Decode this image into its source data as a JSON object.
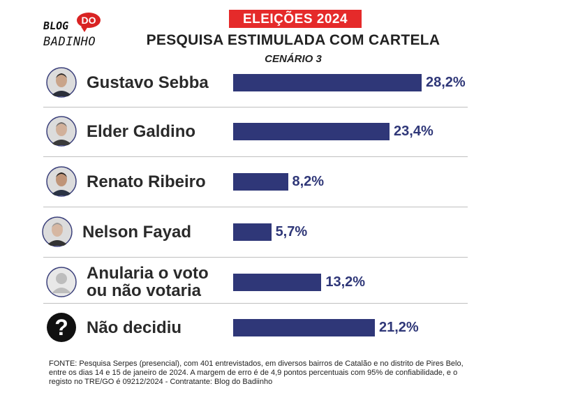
{
  "logo": {
    "blog": "BLOG",
    "do": "DO",
    "badinho": "BADINHO"
  },
  "header": {
    "badge": "ELEIÇÕES 2024",
    "subtitle": "PESQUISA ESTIMULADA  COM CARTELA",
    "scenario": "CENÁRIO 3"
  },
  "chart_data": {
    "type": "bar",
    "orientation": "horizontal",
    "title": "PESQUISA ESTIMULADA COM CARTELA — CENÁRIO 3",
    "categories": [
      "Gustavo Sebba",
      "Elder Galdino",
      "Renato Ribeiro",
      "Nelson Fayad",
      "Anularia o voto ou não votaria",
      "Não decidiu"
    ],
    "name_lines": [
      [
        "Gustavo Sebba"
      ],
      [
        "Elder Galdino"
      ],
      [
        "Renato Ribeiro"
      ],
      [
        "Nelson Fayad"
      ],
      [
        "Anularia o voto",
        "ou não votaria"
      ],
      [
        "Não decidiu"
      ]
    ],
    "values": [
      28.2,
      23.4,
      8.2,
      5.7,
      13.2,
      21.2
    ],
    "labels": [
      "28,2%",
      "23,4%",
      "8,2%",
      "5,7%",
      "13,2%",
      "21,2%"
    ],
    "unit": "%",
    "xlim": [
      0,
      30
    ],
    "bar_color": "#2f3778"
  },
  "footer": "FONTE: Pesquisa Serpes (presencial), com 401 entrevistados, em diversos bairros de Catalão e no distrito de Pires Belo, entre os dias 14 e 15 de janeiro de 2024. A margem de erro é de 4,9 pontos percentuais com 95% de confiabilidade, e o registo no TRE/GO é 09212/2024 - Contratante: Blog do Badiinho"
}
